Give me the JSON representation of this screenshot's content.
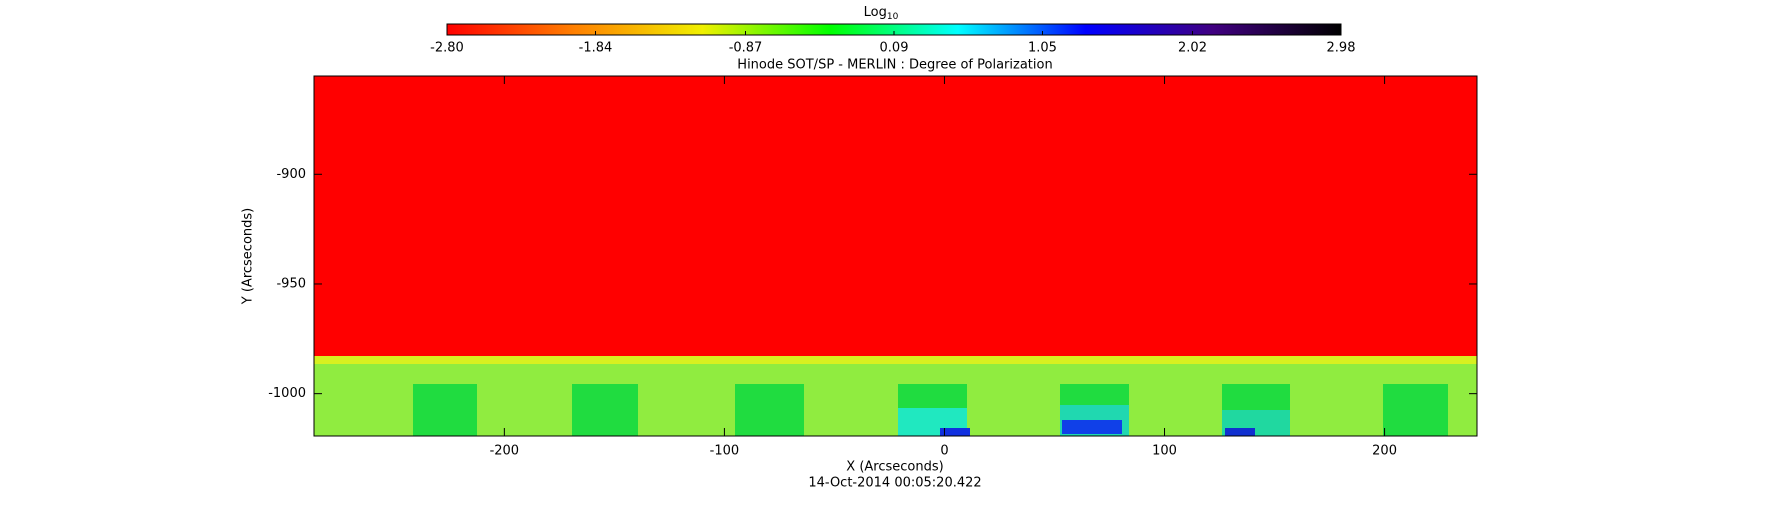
{
  "chart_data": {
    "type": "heatmap",
    "title": "Hinode SOT/SP - MERLIN : Degree of Polarization",
    "x_label": "X (Arcseconds)",
    "y_label": "Y (Arcseconds)",
    "footer": "14-Oct-2014 00:05:20.422",
    "xlim": [
      -286.5,
      242
    ],
    "ylim": [
      -1019.3,
      -855.2
    ],
    "xticks": [
      -200,
      -100,
      0,
      100,
      200
    ],
    "yticks": [
      -900,
      -950,
      -1000
    ],
    "colorbar": {
      "label": "Log",
      "label_subscript": "10",
      "clim": [
        -2.8,
        2.98
      ],
      "ticks": [
        {
          "value": -2.8,
          "label": "-2.80"
        },
        {
          "value": -1.84,
          "label": "-1.84"
        },
        {
          "value": -0.87,
          "label": "-0.87"
        },
        {
          "value": 0.09,
          "label": "0.09"
        },
        {
          "value": 1.05,
          "label": "1.05"
        },
        {
          "value": 2.02,
          "label": "2.02"
        },
        {
          "value": 2.98,
          "label": "2.98"
        }
      ],
      "colormap": [
        "#ff0000",
        "#ff8000",
        "#f0f000",
        "#00ff00",
        "#00ffff",
        "#0000ff",
        "#400080",
        "#000000"
      ]
    }
  }
}
